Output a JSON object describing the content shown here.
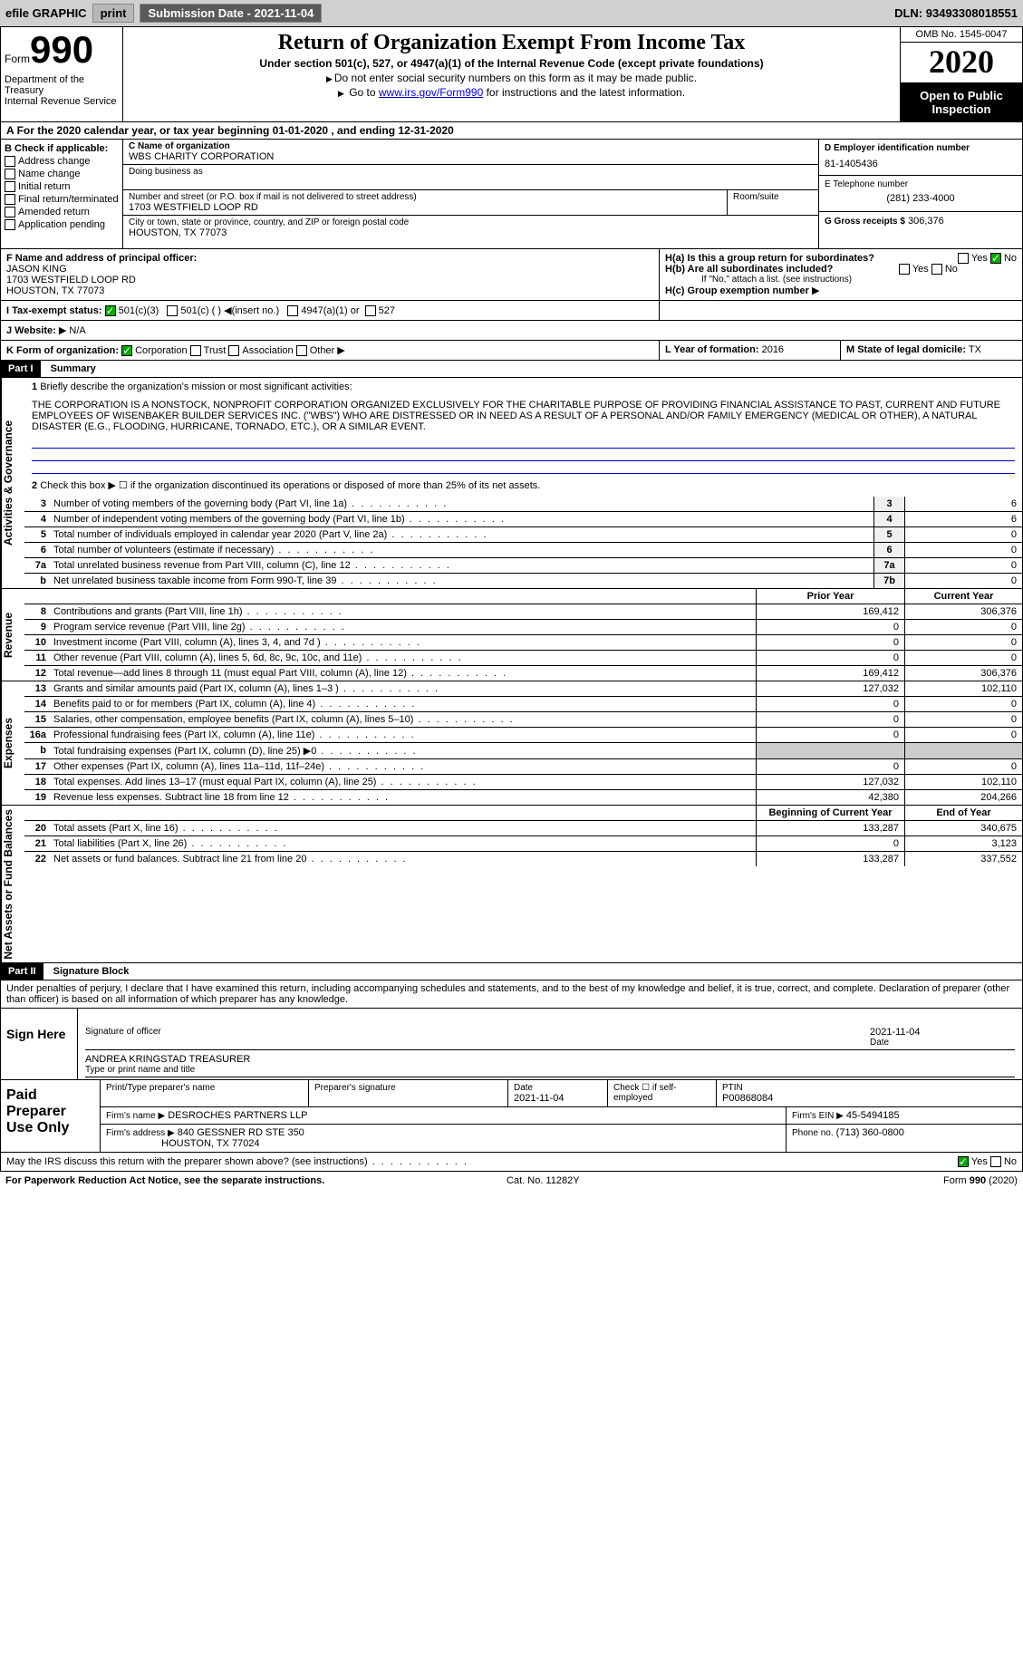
{
  "topbar": {
    "efile": "efile GRAPHIC",
    "print": "print",
    "subdate_label": "Submission Date - ",
    "subdate": "2021-11-04",
    "dln_label": "DLN: ",
    "dln": "93493308018551"
  },
  "header": {
    "form_label": "Form",
    "form_num": "990",
    "dept": "Department of the Treasury\nInternal Revenue Service",
    "title": "Return of Organization Exempt From Income Tax",
    "sub": "Under section 501(c), 527, or 4947(a)(1) of the Internal Revenue Code (except private foundations)",
    "note1": "Do not enter social security numbers on this form as it may be made public.",
    "note2_pre": "Go to ",
    "note2_link": "www.irs.gov/Form990",
    "note2_post": " for instructions and the latest information.",
    "omb": "OMB No. 1545-0047",
    "year": "2020",
    "inspect": "Open to Public Inspection"
  },
  "section_a": {
    "text": "For the 2020 calendar year, or tax year beginning 01-01-2020    , and ending 12-31-2020"
  },
  "col_b": {
    "hdr": "B Check if applicable:",
    "opts": [
      "Address change",
      "Name change",
      "Initial return",
      "Final return/terminated",
      "Amended return",
      "Application pending"
    ]
  },
  "col_c": {
    "name_label": "C Name of organization",
    "name": "WBS CHARITY CORPORATION",
    "dba_label": "Doing business as",
    "dba": "",
    "addr_label": "Number and street (or P.O. box if mail is not delivered to street address)",
    "addr": "1703 WESTFIELD LOOP RD",
    "room_label": "Room/suite",
    "city_label": "City or town, state or province, country, and ZIP or foreign postal code",
    "city": "HOUSTON, TX  77073"
  },
  "col_de": {
    "d_label": "D Employer identification number",
    "d_val": "81-1405436",
    "e_label": "E Telephone number",
    "e_val": "(281) 233-4000",
    "g_label": "G Gross receipts $",
    "g_val": "306,376"
  },
  "f": {
    "label": "F  Name and address of principal officer:",
    "name": "JASON KING",
    "addr1": "1703 WESTFIELD LOOP RD",
    "addr2": "HOUSTON, TX  77073"
  },
  "h": {
    "a_label": "H(a)  Is this a group return for subordinates?",
    "a_no": true,
    "b_label": "H(b)  Are all subordinates included?",
    "b_note": "If \"No,\" attach a list. (see instructions)",
    "c_label": "H(c)  Group exemption number"
  },
  "i": {
    "label": "I   Tax-exempt status:",
    "c3": "501(c)(3)",
    "c": "501(c) (  )",
    "insert": "(insert no.)",
    "a1": "4947(a)(1) or",
    "s527": "527"
  },
  "j": {
    "label": "J   Website:",
    "val": "N/A"
  },
  "k": {
    "label": "K Form of organization:",
    "corp": "Corporation",
    "trust": "Trust",
    "assoc": "Association",
    "other": "Other"
  },
  "l": {
    "label": "L Year of formation:",
    "val": "2016"
  },
  "m": {
    "label": "M State of legal domicile:",
    "val": "TX"
  },
  "part1": {
    "hdr": "Part I",
    "title": "Summary",
    "side_gov": "Activities & Governance",
    "side_rev": "Revenue",
    "side_exp": "Expenses",
    "side_net": "Net Assets or Fund Balances",
    "l1_label": "Briefly describe the organization's mission or most significant activities:",
    "l1_text": "THE CORPORATION IS A NONSTOCK, NONPROFIT CORPORATION ORGANIZED EXCLUSIVELY FOR THE CHARITABLE PURPOSE OF PROVIDING FINANCIAL ASSISTANCE TO PAST, CURRENT AND FUTURE EMPLOYEES OF WISENBAKER BUILDER SERVICES INC. (\"WBS\") WHO ARE DISTRESSED OR IN NEED AS A RESULT OF A PERSONAL AND/OR FAMILY EMERGENCY (MEDICAL OR OTHER), A NATURAL DISASTER (E.G., FLOODING, HURRICANE, TORNADO, ETC.), OR A SIMILAR EVENT.",
    "l2": "Check this box ▶ ☐ if the organization discontinued its operations or disposed of more than 25% of its net assets.",
    "rows_gov": [
      {
        "n": "3",
        "t": "Number of voting members of the governing body (Part VI, line 1a)",
        "box": "3",
        "v": "6"
      },
      {
        "n": "4",
        "t": "Number of independent voting members of the governing body (Part VI, line 1b)",
        "box": "4",
        "v": "6"
      },
      {
        "n": "5",
        "t": "Total number of individuals employed in calendar year 2020 (Part V, line 2a)",
        "box": "5",
        "v": "0"
      },
      {
        "n": "6",
        "t": "Total number of volunteers (estimate if necessary)",
        "box": "6",
        "v": "0"
      },
      {
        "n": "7a",
        "t": "Total unrelated business revenue from Part VIII, column (C), line 12",
        "box": "7a",
        "v": "0"
      },
      {
        "n": "b",
        "t": "Net unrelated business taxable income from Form 990-T, line 39",
        "box": "7b",
        "v": "0"
      }
    ],
    "col_prior": "Prior Year",
    "col_curr": "Current Year",
    "rows_rev": [
      {
        "n": "8",
        "t": "Contributions and grants (Part VIII, line 1h)",
        "p": "169,412",
        "c": "306,376"
      },
      {
        "n": "9",
        "t": "Program service revenue (Part VIII, line 2g)",
        "p": "0",
        "c": "0"
      },
      {
        "n": "10",
        "t": "Investment income (Part VIII, column (A), lines 3, 4, and 7d )",
        "p": "0",
        "c": "0"
      },
      {
        "n": "11",
        "t": "Other revenue (Part VIII, column (A), lines 5, 6d, 8c, 9c, 10c, and 11e)",
        "p": "0",
        "c": "0"
      },
      {
        "n": "12",
        "t": "Total revenue—add lines 8 through 11 (must equal Part VIII, column (A), line 12)",
        "p": "169,412",
        "c": "306,376"
      }
    ],
    "rows_exp": [
      {
        "n": "13",
        "t": "Grants and similar amounts paid (Part IX, column (A), lines 1–3 )",
        "p": "127,032",
        "c": "102,110"
      },
      {
        "n": "14",
        "t": "Benefits paid to or for members (Part IX, column (A), line 4)",
        "p": "0",
        "c": "0"
      },
      {
        "n": "15",
        "t": "Salaries, other compensation, employee benefits (Part IX, column (A), lines 5–10)",
        "p": "0",
        "c": "0"
      },
      {
        "n": "16a",
        "t": "Professional fundraising fees (Part IX, column (A), line 11e)",
        "p": "0",
        "c": "0"
      },
      {
        "n": "b",
        "t": "Total fundraising expenses (Part IX, column (D), line 25) ▶0",
        "p": "",
        "c": ""
      },
      {
        "n": "17",
        "t": "Other expenses (Part IX, column (A), lines 11a–11d, 11f–24e)",
        "p": "0",
        "c": "0"
      },
      {
        "n": "18",
        "t": "Total expenses. Add lines 13–17 (must equal Part IX, column (A), line 25)",
        "p": "127,032",
        "c": "102,110"
      },
      {
        "n": "19",
        "t": "Revenue less expenses. Subtract line 18 from line 12",
        "p": "42,380",
        "c": "204,266"
      }
    ],
    "col_beg": "Beginning of Current Year",
    "col_end": "End of Year",
    "rows_net": [
      {
        "n": "20",
        "t": "Total assets (Part X, line 16)",
        "p": "133,287",
        "c": "340,675"
      },
      {
        "n": "21",
        "t": "Total liabilities (Part X, line 26)",
        "p": "0",
        "c": "3,123"
      },
      {
        "n": "22",
        "t": "Net assets or fund balances. Subtract line 21 from line 20",
        "p": "133,287",
        "c": "337,552"
      }
    ]
  },
  "part2": {
    "hdr": "Part II",
    "title": "Signature Block",
    "decl": "Under penalties of perjury, I declare that I have examined this return, including accompanying schedules and statements, and to the best of my knowledge and belief, it is true, correct, and complete. Declaration of preparer (other than officer) is based on all information of which preparer has any knowledge."
  },
  "sign": {
    "here": "Sign Here",
    "sig_label": "Signature of officer",
    "date": "2021-11-04",
    "date_label": "Date",
    "name": "ANDREA KRINGSTAD  TREASURER",
    "name_label": "Type or print name and title"
  },
  "prep": {
    "title": "Paid Preparer Use Only",
    "r1": {
      "c1": "Print/Type preparer's name",
      "c2": "Preparer's signature",
      "c3_l": "Date",
      "c3_v": "2021-11-04",
      "c4": "Check ☐ if self-employed",
      "c5_l": "PTIN",
      "c5_v": "P00868084"
    },
    "r2": {
      "l": "Firm's name     ▶",
      "v": "DESROCHES PARTNERS LLP",
      "ein_l": "Firm's EIN ▶",
      "ein_v": "45-5494185"
    },
    "r3": {
      "l": "Firm's address ▶",
      "v1": "840 GESSNER RD STE 350",
      "v2": "HOUSTON, TX  77024",
      "ph_l": "Phone no.",
      "ph_v": "(713) 360-0800"
    }
  },
  "discuss": {
    "q": "May the IRS discuss this return with the preparer shown above? (see instructions)",
    "yes": "Yes",
    "no": "No"
  },
  "footer": {
    "l": "For Paperwork Reduction Act Notice, see the separate instructions.",
    "c": "Cat. No. 11282Y",
    "r": "Form 990 (2020)"
  }
}
